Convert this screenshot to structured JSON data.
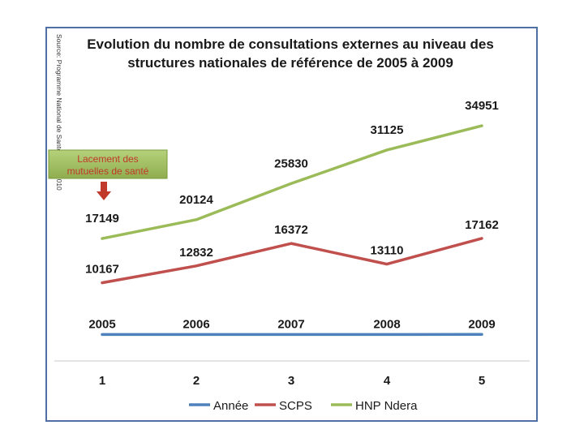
{
  "chart_data": {
    "type": "line",
    "title_lines": [
      "Evolution du nombre de consultations externes au niveau des",
      "structures nationales de référence de 2005 à 2009"
    ],
    "source_note": "Source: Programme National de Santé ... ale, 2010",
    "categories": [
      "1",
      "2",
      "3",
      "4",
      "5"
    ],
    "series": [
      {
        "name": "Année",
        "color": "#4f81bd",
        "values": [
          2005,
          2006,
          2007,
          2008,
          2009
        ]
      },
      {
        "name": "SCPS",
        "color": "#c0504d",
        "values": [
          10167,
          12832,
          16372,
          13110,
          17162
        ]
      },
      {
        "name": "HNP Ndera",
        "color": "#9bbb59",
        "values": [
          17149,
          20124,
          25830,
          31125,
          34951
        ]
      }
    ],
    "ylim": [
      0,
      42000
    ],
    "grid": false,
    "legend": "bottom",
    "annotation": {
      "text_lines": [
        "Lacement des",
        "mutuelles de santé"
      ],
      "target_category": "1",
      "fill_color": "#9bbb59",
      "text_color": "#c0392b",
      "arrow_color": "#c0392b"
    }
  }
}
